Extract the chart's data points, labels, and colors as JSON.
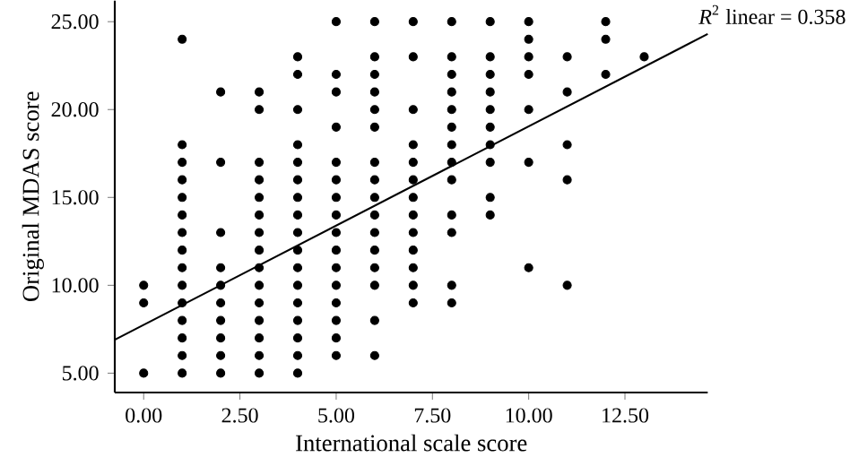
{
  "chart_data": {
    "type": "scatter",
    "xlabel": "International scale score",
    "ylabel": "Original MDAS score",
    "annotations": [
      "*R*$^{2}$ linear = 0.358"
    ],
    "xlim": [
      -0.75,
      14.65
    ],
    "ylim": [
      3.9,
      26.2
    ],
    "xticks": [
      {
        "value": 0,
        "label": "0.00"
      },
      {
        "value": 2.5,
        "label": "2.50"
      },
      {
        "value": 5,
        "label": "5.00"
      },
      {
        "value": 7.5,
        "label": "7.50"
      },
      {
        "value": 10,
        "label": "10.00"
      },
      {
        "value": 12.5,
        "label": "12.50"
      }
    ],
    "yticks": [
      {
        "value": 5,
        "label": "5.00"
      },
      {
        "value": 10,
        "label": "10.00"
      },
      {
        "value": 15,
        "label": "15.00"
      },
      {
        "value": 20,
        "label": "20.00"
      },
      {
        "value": 25,
        "label": "25.00"
      }
    ],
    "grid": false,
    "series": [
      {
        "color": "#000000",
        "marker": "circle",
        "x": [
          0,
          0,
          0,
          1,
          1,
          1,
          1,
          1,
          1,
          1,
          1,
          1,
          1,
          1,
          1,
          1,
          1,
          1,
          2,
          2,
          2,
          2,
          2,
          2,
          2,
          2,
          2,
          2,
          3,
          3,
          3,
          3,
          3,
          3,
          3,
          3,
          3,
          3,
          3,
          3,
          3,
          3,
          3,
          4,
          4,
          4,
          4,
          4,
          4,
          4,
          4,
          4,
          4,
          4,
          4,
          4,
          4,
          4,
          4,
          4,
          5,
          5,
          5,
          5,
          5,
          5,
          5,
          5,
          5,
          5,
          5,
          5,
          5,
          5,
          5,
          5,
          6,
          6,
          6,
          6,
          6,
          6,
          6,
          6,
          6,
          6,
          6,
          6,
          6,
          6,
          6,
          6,
          7,
          7,
          7,
          7,
          7,
          7,
          7,
          7,
          7,
          7,
          7,
          7,
          7,
          8,
          8,
          8,
          8,
          8,
          8,
          8,
          8,
          8,
          8,
          8,
          8,
          8,
          9,
          9,
          9,
          9,
          9,
          9,
          9,
          9,
          9,
          9,
          10,
          10,
          10,
          10,
          10,
          10,
          10,
          11,
          11,
          11,
          11,
          11,
          12,
          12,
          12,
          13
        ],
        "values": [
          10,
          9,
          5,
          24,
          18,
          17,
          16,
          15,
          14,
          13,
          12,
          11,
          10,
          9,
          8,
          7,
          6,
          5,
          21,
          17,
          13,
          11,
          10,
          9,
          8,
          7,
          6,
          5,
          21,
          20,
          17,
          16,
          15,
          14,
          13,
          12,
          11,
          10,
          9,
          8,
          7,
          6,
          5,
          23,
          22,
          20,
          18,
          17,
          16,
          15,
          14,
          13,
          12,
          11,
          10,
          9,
          8,
          7,
          6,
          5,
          25,
          22,
          21,
          19,
          17,
          16,
          15,
          14,
          13,
          12,
          11,
          10,
          9,
          8,
          7,
          6,
          25,
          23,
          22,
          21,
          20,
          19,
          17,
          16,
          15,
          14,
          13,
          12,
          11,
          10,
          8,
          6,
          25,
          23,
          20,
          18,
          17,
          16,
          15,
          14,
          13,
          12,
          11,
          10,
          9,
          25,
          23,
          22,
          21,
          20,
          19,
          18,
          17,
          16,
          14,
          13,
          10,
          9,
          25,
          23,
          22,
          21,
          20,
          19,
          18,
          17,
          15,
          14,
          25,
          24,
          23,
          22,
          20,
          17,
          11,
          23,
          21,
          18,
          16,
          10,
          25,
          24,
          22,
          23
        ]
      },
      {
        "type": "line",
        "color": "#000000",
        "marker": "none",
        "line_style": "solid",
        "x": [
          -0.75,
          14.65
        ],
        "values": [
          6.9,
          24.3
        ]
      }
    ]
  }
}
